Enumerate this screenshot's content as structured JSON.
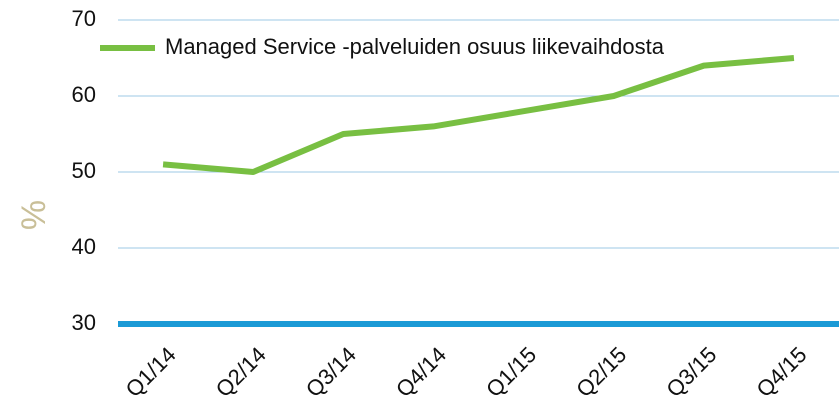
{
  "chart_data": {
    "type": "line",
    "y_label": "%",
    "categories": [
      "Q1/14",
      "Q2/14",
      "Q3/14",
      "Q4/14",
      "Q1/15",
      "Q2/15",
      "Q3/15",
      "Q4/15"
    ],
    "series": [
      {
        "name": "Managed Service -palveluiden osuus liikevaihdosta",
        "color": "#78bf42",
        "values": [
          51,
          50,
          55,
          56,
          58,
          60,
          64,
          65
        ]
      }
    ],
    "ylim": [
      30,
      70
    ],
    "yticks": [
      30,
      40,
      50,
      60,
      70
    ],
    "grid": true,
    "axis_color": "#1b9ad6",
    "y_label_color": "#c9bf98",
    "legend": "top"
  }
}
